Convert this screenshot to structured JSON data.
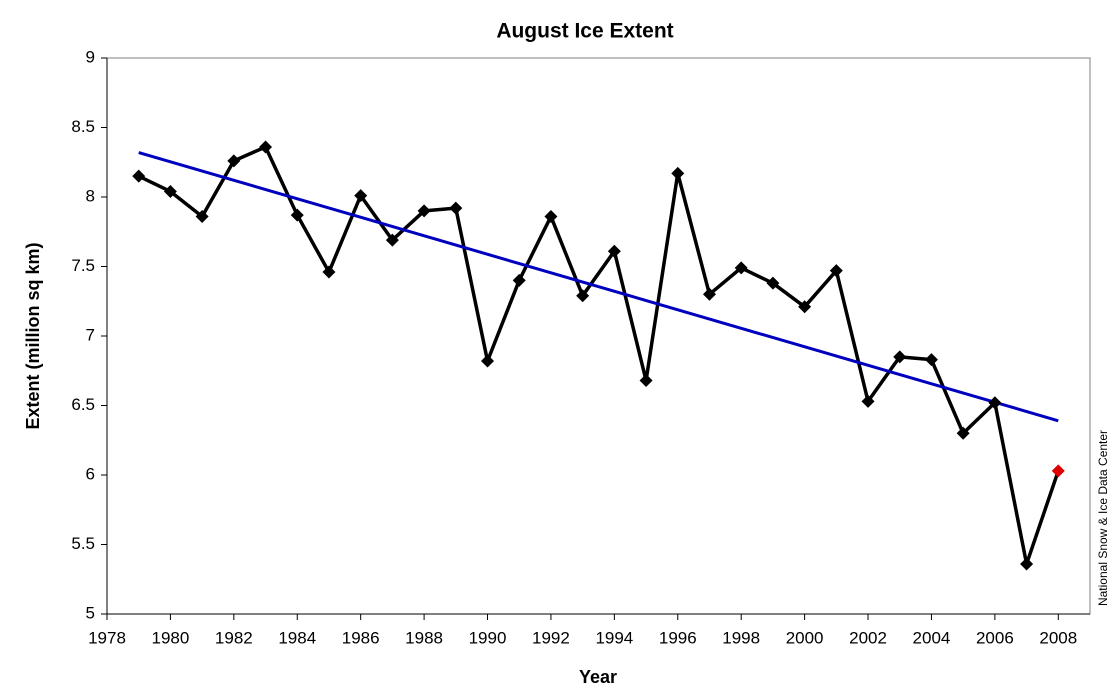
{
  "chart_data": {
    "type": "line",
    "title": "August Ice Extent",
    "xlabel": "Year",
    "ylabel": "Extent (million sq km)",
    "source": "National Snow & Ice Data Center",
    "x": [
      1979,
      1980,
      1981,
      1982,
      1983,
      1984,
      1985,
      1986,
      1987,
      1988,
      1989,
      1990,
      1991,
      1992,
      1993,
      1994,
      1995,
      1996,
      1997,
      1998,
      1999,
      2000,
      2001,
      2002,
      2003,
      2004,
      2005,
      2006,
      2007,
      2008
    ],
    "series": [
      {
        "color": "#000000",
        "values": [
          8.15,
          8.04,
          7.86,
          8.26,
          8.36,
          7.87,
          7.46,
          8.01,
          7.69,
          7.9,
          7.92,
          6.82,
          7.4,
          7.86,
          7.29,
          7.61,
          6.68,
          8.17,
          7.3,
          7.49,
          7.38,
          7.21,
          7.47,
          6.53,
          6.85,
          6.83,
          6.3,
          6.52,
          5.36,
          6.03
        ],
        "point_colors": [
          "#000000",
          "#000000",
          "#000000",
          "#000000",
          "#000000",
          "#000000",
          "#000000",
          "#000000",
          "#000000",
          "#000000",
          "#000000",
          "#000000",
          "#000000",
          "#000000",
          "#000000",
          "#000000",
          "#000000",
          "#000000",
          "#000000",
          "#000000",
          "#000000",
          "#000000",
          "#000000",
          "#000000",
          "#000000",
          "#000000",
          "#000000",
          "#000000",
          "#000000",
          "#e00000"
        ]
      }
    ],
    "trend": {
      "color": "#0000c0",
      "x": [
        1979,
        2008
      ],
      "values": [
        8.32,
        6.39
      ]
    },
    "xlim": [
      1978,
      2009
    ],
    "xticks": [
      1978,
      1980,
      1982,
      1984,
      1986,
      1988,
      1990,
      1992,
      1994,
      1996,
      1998,
      2000,
      2002,
      2004,
      2006,
      2008
    ],
    "ylim": [
      5,
      9
    ],
    "yticks": [
      5,
      5.5,
      6,
      6.5,
      7,
      7.5,
      8,
      8.5,
      9
    ],
    "grid": false
  }
}
